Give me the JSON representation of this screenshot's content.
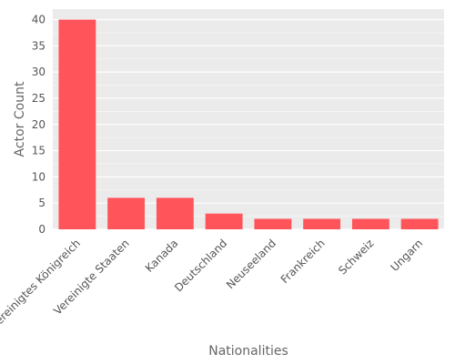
{
  "chart_data": {
    "type": "bar",
    "categories": [
      "Vereinigtes Königreich",
      "Vereinigte Staaten",
      "Kanada",
      "Deutschland",
      "Neuseeland",
      "Frankreich",
      "Schweiz",
      "Ungarn"
    ],
    "values": [
      40,
      6,
      6,
      3,
      2,
      2,
      2,
      2
    ],
    "xlabel": "Nationalities",
    "ylabel": "Actor Count",
    "ylim": [
      0,
      42
    ],
    "yticks": [
      0,
      5,
      10,
      15,
      20,
      25,
      30,
      35,
      40
    ],
    "grid": true,
    "bar_color": "#ff5459",
    "plot_background": "#ebebeb",
    "grid_color": "#ffffff"
  }
}
